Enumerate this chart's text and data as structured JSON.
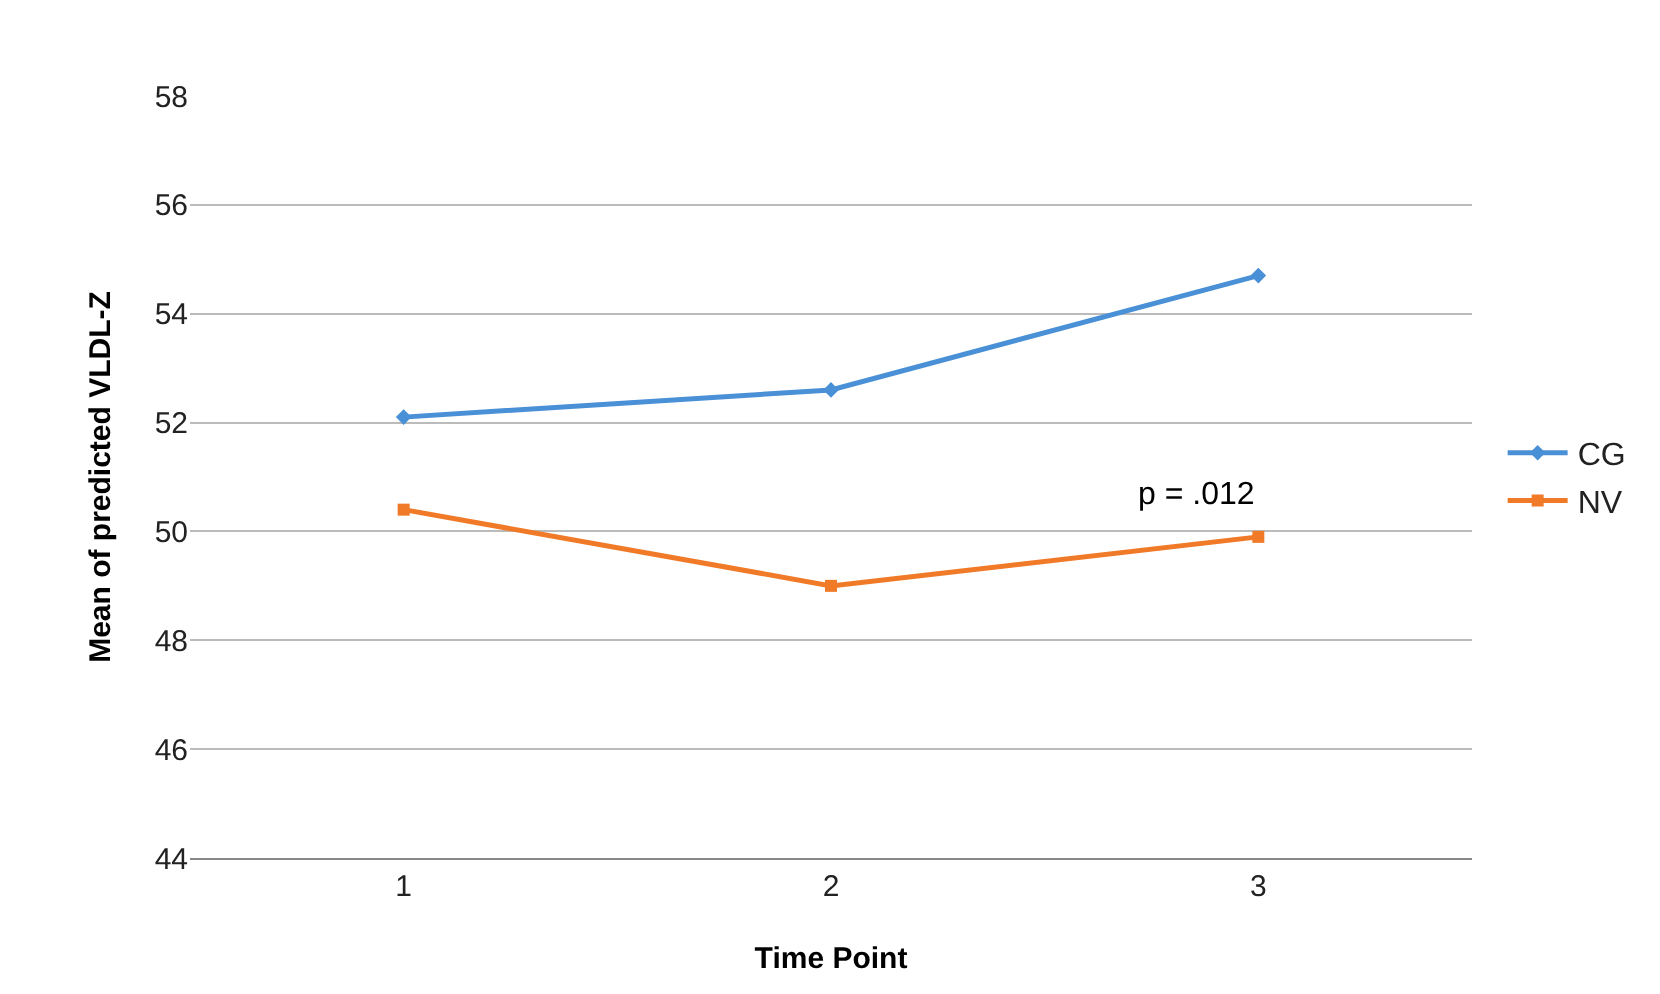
{
  "chart_data": {
    "type": "line",
    "xlabel": "Time Point",
    "ylabel": "Mean of predicted VLDL-Z",
    "categories": [
      "1",
      "2",
      "3"
    ],
    "series": [
      {
        "name": "CG",
        "color": "#4a90d6",
        "values": [
          52.1,
          52.6,
          54.7
        ],
        "marker": "diamond"
      },
      {
        "name": "NV",
        "color": "#f07a28",
        "values": [
          50.4,
          49.0,
          49.9
        ],
        "marker": "square"
      }
    ],
    "ylim": [
      44,
      58
    ],
    "yticks": [
      44,
      46,
      48,
      50,
      52,
      54,
      56,
      58
    ],
    "grid": "y",
    "legend": "right",
    "line_style": "solid",
    "annotations": [
      {
        "text": "p = .012",
        "x": "3",
        "y": 49.9
      }
    ]
  }
}
